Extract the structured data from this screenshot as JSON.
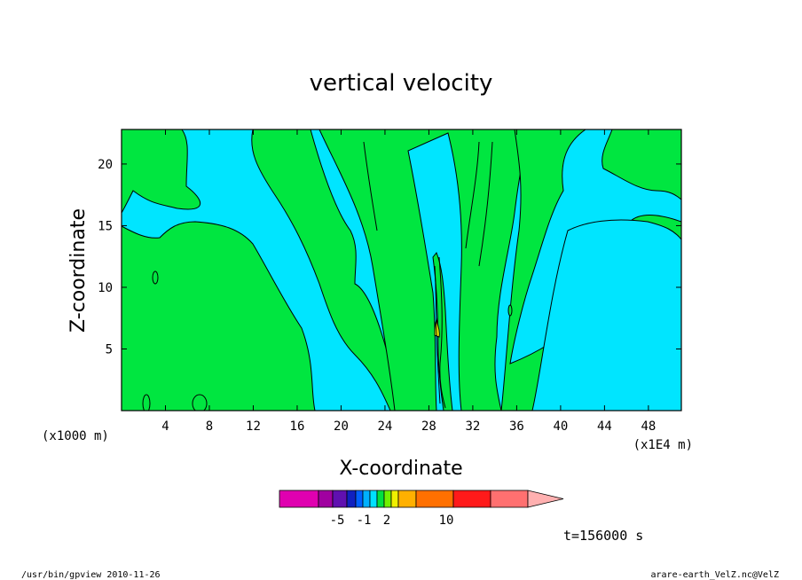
{
  "chart_data": {
    "type": "heatmap",
    "title": "vertical velocity",
    "xlabel": "X-coordinate",
    "ylabel": "Z-coordinate",
    "x_unit_left": "(x1000 m)",
    "x_unit_right": "(x1E4 m)",
    "x_ticks": [
      "4",
      "8",
      "12",
      "16",
      "20",
      "24",
      "28",
      "32",
      "36",
      "40",
      "44",
      "48"
    ],
    "y_ticks": [
      "5",
      "10",
      "15",
      "20"
    ],
    "xlim": [
      0,
      51
    ],
    "ylim": [
      0,
      22.8
    ],
    "colorbar": {
      "labels": [
        "-5",
        "-1",
        "2",
        "10"
      ],
      "colors": [
        "#e000b0",
        "#a000a0",
        "#6010b0",
        "#1020c0",
        "#0060ff",
        "#00b0ff",
        "#00e0ff",
        "#00e040",
        "#70f000",
        "#f0f000",
        "#ffb000",
        "#ff7000",
        "#ff1a1a",
        "#ff7070",
        "#ffb0b0"
      ]
    },
    "time_label": "t=156000 s",
    "colors": {
      "background_field": "#00e5ff",
      "updraft_band": "#00e640",
      "core": "#ffff00",
      "contour": "#000000"
    }
  },
  "footer": {
    "left": "/usr/bin/gpview   2010-11-26",
    "right": "arare-earth_VelZ.nc@VelZ"
  }
}
